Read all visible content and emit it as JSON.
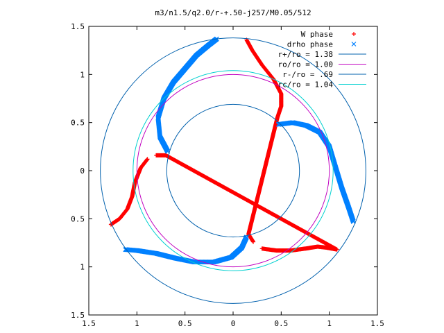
{
  "chart_data": {
    "type": "scatter",
    "title": "m3/n1.5/q2.0/r-+.50-j257/M0.05/512",
    "xlim": [
      -1.5,
      1.5
    ],
    "ylim": [
      -1.5,
      1.5
    ],
    "x_tick_labels": [
      "1.5",
      "1",
      "0.5",
      "0",
      "0.5",
      "1",
      "1.5"
    ],
    "y_tick_labels": [
      "1.5",
      "1",
      "0.5",
      "0",
      "0.5",
      "1",
      "1.5"
    ],
    "x_tick_values": [
      -1.5,
      -1,
      -0.5,
      0,
      0.5,
      1,
      1.5
    ],
    "y_tick_values": [
      1.5,
      1,
      0.5,
      0,
      -0.5,
      -1,
      -1.5
    ],
    "legend_position": "top-right",
    "grid": false,
    "series": [
      {
        "name": "W phase",
        "marker": "plus",
        "color": "#ff0000",
        "points": [
          [
            0.14,
            1.36
          ],
          [
            0.2,
            1.25
          ],
          [
            0.3,
            1.1
          ],
          [
            0.42,
            0.95
          ],
          [
            0.5,
            0.8
          ],
          [
            0.5,
            0.67
          ],
          [
            0.46,
            0.55
          ],
          [
            0.16,
            -0.66
          ],
          [
            0.21,
            -0.74
          ],
          [
            0.3,
            -0.81
          ],
          [
            0.45,
            -0.83
          ],
          [
            0.6,
            -0.83
          ],
          [
            0.75,
            -0.81
          ],
          [
            0.88,
            -0.79
          ],
          [
            0.97,
            -0.8
          ],
          [
            1.08,
            -0.82
          ],
          [
            -0.7,
            0.16
          ],
          [
            -0.8,
            0.16
          ],
          [
            -0.89,
            0.12
          ],
          [
            -0.96,
            0.03
          ],
          [
            -1.02,
            -0.12
          ],
          [
            -1.05,
            -0.27
          ],
          [
            -1.1,
            -0.4
          ],
          [
            -1.18,
            -0.5
          ],
          [
            -1.27,
            -0.56
          ]
        ]
      },
      {
        "name": "drho phase",
        "marker": "cross",
        "color": "#0080ff",
        "points": [
          [
            0.47,
            0.48
          ],
          [
            0.62,
            0.5
          ],
          [
            0.76,
            0.47
          ],
          [
            0.9,
            0.4
          ],
          [
            1.0,
            0.25
          ],
          [
            1.06,
            0.05
          ],
          [
            1.13,
            -0.18
          ],
          [
            1.2,
            -0.38
          ],
          [
            1.25,
            -0.53
          ],
          [
            0.14,
            -0.69
          ],
          [
            0.09,
            -0.8
          ],
          [
            -0.02,
            -0.9
          ],
          [
            -0.2,
            -0.95
          ],
          [
            -0.4,
            -0.95
          ],
          [
            -0.6,
            -0.91
          ],
          [
            -0.8,
            -0.86
          ],
          [
            -1.0,
            -0.83
          ],
          [
            -1.12,
            -0.82
          ],
          [
            -0.68,
            0.2
          ],
          [
            -0.76,
            0.35
          ],
          [
            -0.78,
            0.55
          ],
          [
            -0.72,
            0.75
          ],
          [
            -0.62,
            0.92
          ],
          [
            -0.5,
            1.06
          ],
          [
            -0.38,
            1.2
          ],
          [
            -0.26,
            1.3
          ],
          [
            -0.17,
            1.37
          ]
        ]
      },
      {
        "name": "r+/ro = 1.38",
        "shape": "circle",
        "radius": 1.38,
        "color": "#0060ad"
      },
      {
        "name": "ro/ro = 1.00",
        "shape": "circle",
        "radius": 1.0,
        "color": "#c000c0"
      },
      {
        "name": "r-/ro = .69",
        "shape": "circle",
        "radius": 0.69,
        "color": "#0060ad"
      },
      {
        "name": "rc/ro = 1.04",
        "shape": "circle",
        "radius": 1.04,
        "color": "#00d0d0"
      }
    ]
  }
}
